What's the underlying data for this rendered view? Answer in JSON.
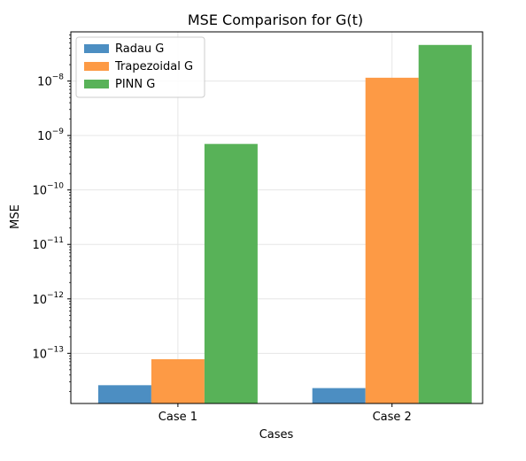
{
  "chart_data": {
    "type": "bar",
    "title": "MSE Comparison for G(t)",
    "xlabel": "Cases",
    "ylabel": "MSE",
    "yscale": "log",
    "ylim": [
      1.2e-14,
      8e-08
    ],
    "categories": [
      "Case 1",
      "Case 2"
    ],
    "series": [
      {
        "name": "Radau G",
        "color": "#4c8ec2",
        "values": [
          2.6e-14,
          2.3e-14
        ]
      },
      {
        "name": "Trapezoidal G",
        "color": "#fd9a45",
        "values": [
          7.8e-14,
          1.15e-08
        ]
      },
      {
        "name": "PINN G",
        "color": "#58b258",
        "values": [
          7e-10,
          4.6e-08
        ]
      }
    ],
    "yticks": [
      {
        "base": "10",
        "exp": "−13",
        "value": 1e-13
      },
      {
        "base": "10",
        "exp": "−12",
        "value": 1e-12
      },
      {
        "base": "10",
        "exp": "−11",
        "value": 1e-11
      },
      {
        "base": "10",
        "exp": "−10",
        "value": 1e-10
      },
      {
        "base": "10",
        "exp": "−9",
        "value": 1e-09
      },
      {
        "base": "10",
        "exp": "−8",
        "value": 1e-08
      }
    ],
    "grid": true,
    "legend_position": "top-left"
  }
}
